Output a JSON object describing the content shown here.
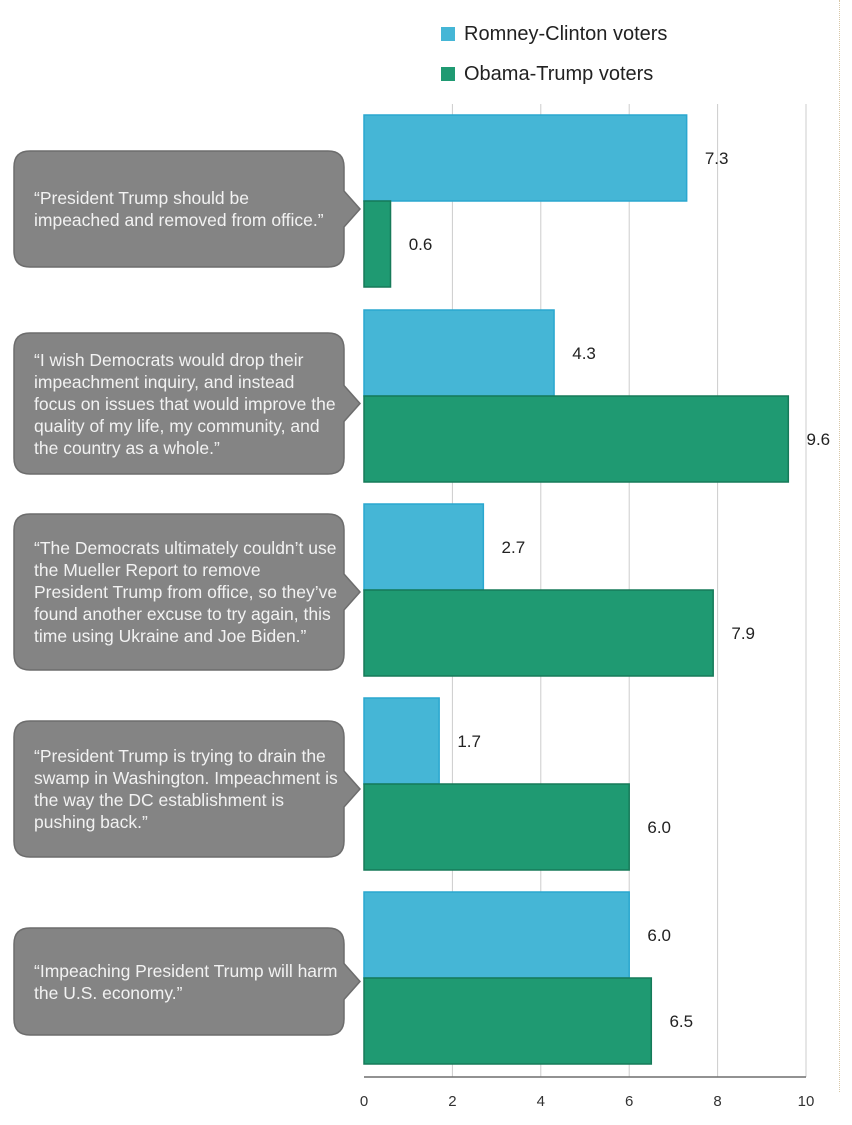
{
  "chart_data": {
    "type": "bar",
    "orientation": "horizontal",
    "categories": [
      "“President Trump should be impeached and removed from office.”",
      "“I wish Democrats would drop their impeachment inquiry, and instead focus on issues that would improve the quality of my life, my community, and the country as a whole.”",
      "“The Democrats ultimately couldn’t use the Mueller Report to remove President Trump from office, so they’ve found another excuse to try again, this time using Ukraine and Joe Biden.”",
      "“President Trump is trying to drain the swamp in Washington. Impeachment is the way the DC establishment is pushing back.”",
      "“Impeaching President Trump will harm the U.S. economy.”"
    ],
    "series": [
      {
        "name": "Romney-Clinton voters",
        "values": [
          7.3,
          4.3,
          2.7,
          1.7,
          6.0
        ],
        "labels": [
          "7.3",
          "4.3",
          "2.7",
          "1.7",
          "6.0"
        ],
        "color": "#45b6d6",
        "border": "#2aa7cf"
      },
      {
        "name": "Obama-Trump voters",
        "values": [
          0.6,
          9.6,
          7.9,
          6.0,
          6.5
        ],
        "labels": [
          "0.6",
          "9.6",
          "7.9",
          "6.0",
          "6.5"
        ],
        "color": "#1f9a72",
        "border": "#167a59"
      }
    ],
    "xlim": [
      0,
      10
    ],
    "xticks": [
      "0",
      "2",
      "4",
      "6",
      "8",
      "10"
    ],
    "xtick_values": [
      0,
      2,
      4,
      6,
      8,
      10
    ],
    "grid": true,
    "legend_position": "top"
  },
  "style": {
    "bubble_color": "#848484",
    "bubble_border": "#6d6d6d",
    "grid_color": "#cccccc",
    "axis_color": "#6f6f6f"
  }
}
